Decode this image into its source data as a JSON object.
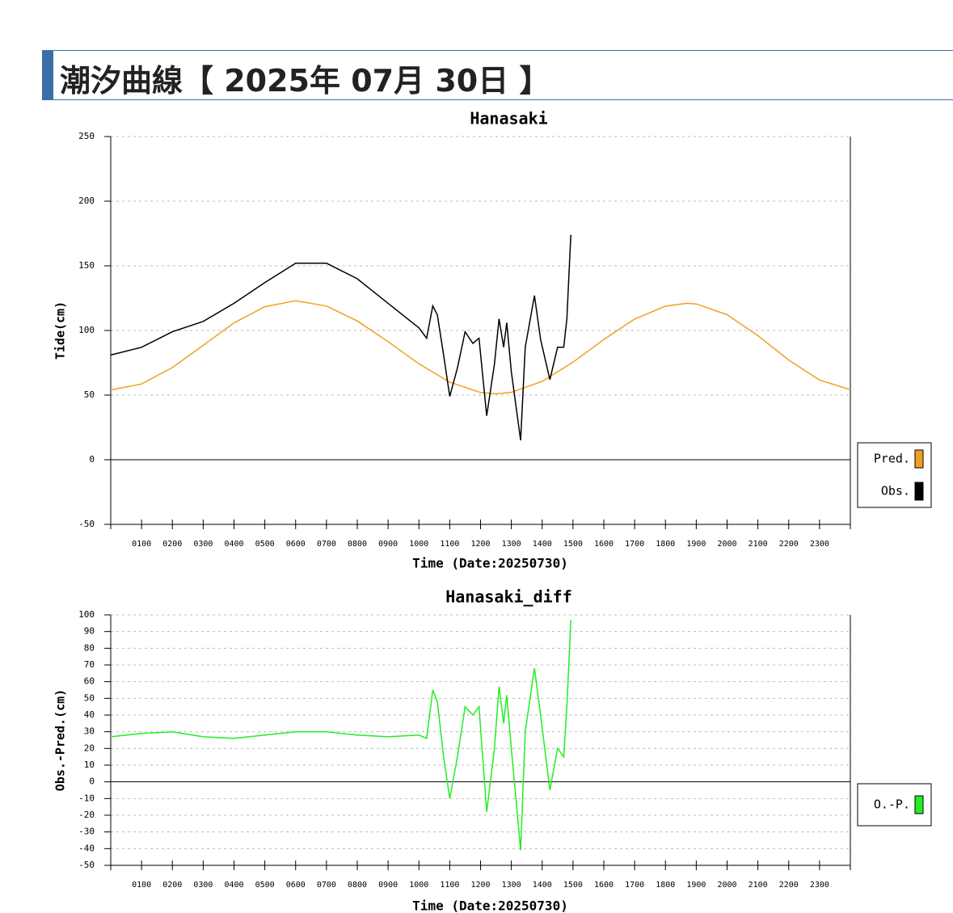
{
  "header": {
    "title": "潮汐曲線【 2025年 07月 30日 】"
  },
  "chart_data": [
    {
      "type": "line",
      "title": "Hanasaki",
      "x_label": "Time (Date:20250730)",
      "y_label": "Tide(cm)",
      "xlim": [
        0,
        24
      ],
      "ylim": [
        -50,
        250
      ],
      "yticks": [
        -50,
        0,
        50,
        100,
        150,
        200,
        250
      ],
      "grid": true,
      "xticks": [
        {
          "value": 1,
          "label": "0100"
        },
        {
          "value": 2,
          "label": "0200"
        },
        {
          "value": 3,
          "label": "0300"
        },
        {
          "value": 4,
          "label": "0400"
        },
        {
          "value": 5,
          "label": "0500"
        },
        {
          "value": 6,
          "label": "0600"
        },
        {
          "value": 7,
          "label": "0700"
        },
        {
          "value": 8,
          "label": "0800"
        },
        {
          "value": 9,
          "label": "0900"
        },
        {
          "value": 10,
          "label": "1000"
        },
        {
          "value": 11,
          "label": "1100"
        },
        {
          "value": 12,
          "label": "1200"
        },
        {
          "value": 13,
          "label": "1300"
        },
        {
          "value": 14,
          "label": "1400"
        },
        {
          "value": 15,
          "label": "1500"
        },
        {
          "value": 16,
          "label": "1600"
        },
        {
          "value": 17,
          "label": "1700"
        },
        {
          "value": 18,
          "label": "1800"
        },
        {
          "value": 19,
          "label": "1900"
        },
        {
          "value": 20,
          "label": "2000"
        },
        {
          "value": 21,
          "label": "2100"
        },
        {
          "value": 22,
          "label": "2200"
        },
        {
          "value": 23,
          "label": "2300"
        }
      ],
      "series": [
        {
          "name": "Pred.",
          "color": "#f0a020",
          "x": [
            0,
            1,
            2,
            3,
            4,
            5,
            6,
            7,
            8,
            9,
            10,
            11,
            12,
            12.5,
            13,
            14,
            15,
            16,
            17,
            18,
            18.7,
            19,
            20,
            21,
            22,
            23,
            24
          ],
          "values": [
            54,
            58.6,
            71.3,
            88.5,
            105.8,
            118.4,
            123,
            118.9,
            107.4,
            91.3,
            74.2,
            60,
            52,
            51,
            52.1,
            60.6,
            75.5,
            93,
            108.8,
            118.8,
            121,
            120.5,
            112.2,
            96,
            77.1,
            61.6,
            54.2
          ]
        },
        {
          "name": "Obs.",
          "color": "#000000",
          "x": [
            0,
            1,
            2,
            3,
            4,
            5,
            6,
            7,
            8,
            9,
            10,
            10.25,
            10.45,
            10.6,
            10.8,
            11,
            11.25,
            11.5,
            11.75,
            11.95,
            12.2,
            12.45,
            12.6,
            12.75,
            12.85,
            13,
            13.3,
            13.45,
            13.75,
            13.95,
            14.25,
            14.5,
            14.7,
            14.8,
            14.93
          ],
          "values": [
            81,
            87,
            99,
            107,
            121,
            137,
            152,
            152,
            140,
            121,
            102,
            94,
            119,
            112,
            81,
            49,
            71,
            99,
            90,
            94,
            34,
            74,
            109,
            87,
            106,
            68,
            15,
            87,
            127,
            93,
            62,
            87,
            87,
            109,
            174
          ]
        }
      ],
      "legend": "right"
    },
    {
      "type": "line",
      "title": "Hanasaki_diff",
      "x_label": "Time (Date:20250730)",
      "y_label": "Obs.-Pred.(cm)",
      "xlim": [
        0,
        24
      ],
      "ylim": [
        -50,
        100
      ],
      "yticks": [
        -50,
        -40,
        -30,
        -20,
        -10,
        0,
        10,
        20,
        30,
        40,
        50,
        60,
        70,
        80,
        90,
        100
      ],
      "grid": true,
      "xticks": [
        {
          "value": 1,
          "label": "0100"
        },
        {
          "value": 2,
          "label": "0200"
        },
        {
          "value": 3,
          "label": "0300"
        },
        {
          "value": 4,
          "label": "0400"
        },
        {
          "value": 5,
          "label": "0500"
        },
        {
          "value": 6,
          "label": "0600"
        },
        {
          "value": 7,
          "label": "0700"
        },
        {
          "value": 8,
          "label": "0800"
        },
        {
          "value": 9,
          "label": "0900"
        },
        {
          "value": 10,
          "label": "1000"
        },
        {
          "value": 11,
          "label": "1100"
        },
        {
          "value": 12,
          "label": "1200"
        },
        {
          "value": 13,
          "label": "1300"
        },
        {
          "value": 14,
          "label": "1400"
        },
        {
          "value": 15,
          "label": "1500"
        },
        {
          "value": 16,
          "label": "1600"
        },
        {
          "value": 17,
          "label": "1700"
        },
        {
          "value": 18,
          "label": "1800"
        },
        {
          "value": 19,
          "label": "1900"
        },
        {
          "value": 20,
          "label": "2000"
        },
        {
          "value": 21,
          "label": "2100"
        },
        {
          "value": 22,
          "label": "2200"
        },
        {
          "value": 23,
          "label": "2300"
        }
      ],
      "series": [
        {
          "name": "O.-P.",
          "color": "#22ee22",
          "x": [
            0,
            1,
            2,
            3,
            4,
            5,
            6,
            7,
            8,
            9,
            10,
            10.25,
            10.45,
            10.6,
            10.8,
            11,
            11.25,
            11.5,
            11.75,
            11.95,
            12.2,
            12.45,
            12.6,
            12.75,
            12.85,
            13,
            13.3,
            13.45,
            13.75,
            13.95,
            14.25,
            14.5,
            14.7,
            14.8,
            14.93
          ],
          "values": [
            27,
            29,
            30,
            27,
            26,
            28,
            30,
            30,
            28,
            27,
            28,
            26,
            55,
            48,
            15,
            -10,
            15,
            45,
            40,
            45,
            -18,
            20,
            57,
            35,
            52,
            20,
            -41,
            30,
            68,
            40,
            -5,
            20,
            15,
            45,
            97
          ]
        }
      ],
      "legend": "right"
    }
  ]
}
